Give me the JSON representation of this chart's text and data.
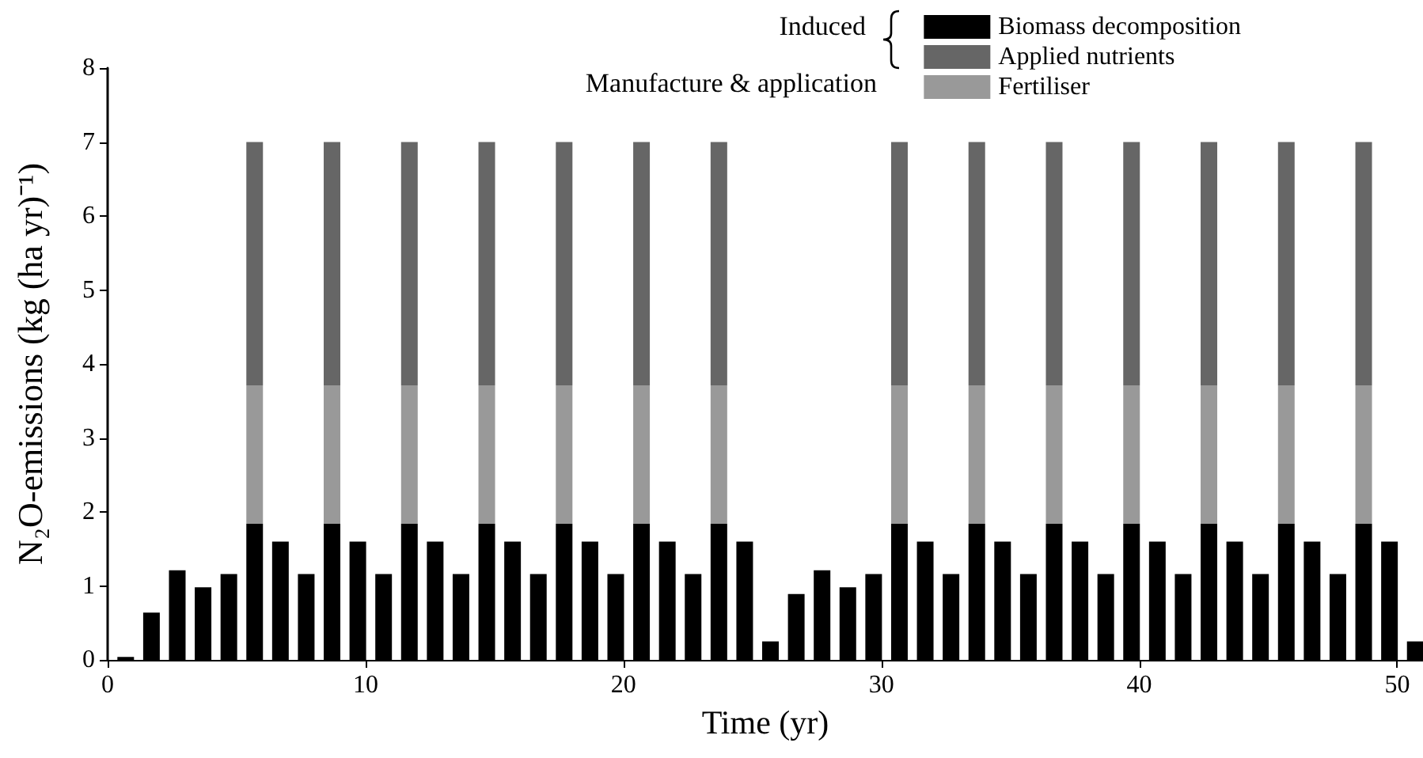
{
  "chart_data": {
    "type": "bar",
    "stacked": true,
    "xlabel": "Time (yr)",
    "ylabel": "N₂O-emissions (kg (ha yr)⁻¹)",
    "x": [
      0.7,
      1.7,
      2.7,
      3.7,
      4.7,
      5.7,
      6.7,
      7.7,
      8.7,
      9.7,
      10.7,
      11.7,
      12.7,
      13.7,
      14.7,
      15.7,
      16.7,
      17.7,
      18.7,
      19.7,
      20.7,
      21.7,
      22.7,
      23.7,
      24.7,
      25.7,
      26.7,
      27.7,
      28.7,
      29.7,
      30.7,
      31.7,
      32.7,
      33.7,
      34.7,
      35.7,
      36.7,
      37.7,
      38.7,
      39.7,
      40.7,
      41.7,
      42.7,
      43.7,
      44.7,
      45.7,
      46.7,
      47.7,
      48.7,
      49.7,
      50.7
    ],
    "series": [
      {
        "name": "Biomass decomposition",
        "color": "#000000",
        "values": [
          0.04,
          0.64,
          1.21,
          0.98,
          1.16,
          1.84,
          1.6,
          1.16,
          1.84,
          1.6,
          1.16,
          1.84,
          1.6,
          1.16,
          1.84,
          1.6,
          1.16,
          1.84,
          1.6,
          1.16,
          1.84,
          1.6,
          1.16,
          1.84,
          1.6,
          0.25,
          0.89,
          1.21,
          0.98,
          1.16,
          1.84,
          1.6,
          1.16,
          1.84,
          1.6,
          1.16,
          1.84,
          1.6,
          1.16,
          1.84,
          1.6,
          1.16,
          1.84,
          1.6,
          1.16,
          1.84,
          1.6,
          1.16,
          1.84,
          1.6,
          0.25
        ]
      },
      {
        "name": "Fertiliser",
        "color": "#999999",
        "values": [
          null,
          null,
          null,
          null,
          null,
          1.87,
          null,
          null,
          1.87,
          null,
          null,
          1.87,
          null,
          null,
          1.87,
          null,
          null,
          1.87,
          null,
          null,
          1.87,
          null,
          null,
          1.87,
          null,
          null,
          null,
          null,
          null,
          null,
          1.87,
          null,
          null,
          1.87,
          null,
          null,
          1.87,
          null,
          null,
          1.87,
          null,
          null,
          1.87,
          null,
          null,
          1.87,
          null,
          null,
          1.87,
          null,
          null
        ]
      },
      {
        "name": "Applied nutrients",
        "color": "#666666",
        "values": [
          null,
          null,
          null,
          null,
          null,
          3.29,
          null,
          null,
          3.29,
          null,
          null,
          3.29,
          null,
          null,
          3.29,
          null,
          null,
          3.29,
          null,
          null,
          3.29,
          null,
          null,
          3.29,
          null,
          null,
          null,
          null,
          null,
          null,
          3.29,
          null,
          null,
          3.29,
          null,
          null,
          3.29,
          null,
          null,
          3.29,
          null,
          null,
          3.29,
          null,
          null,
          3.29,
          null,
          null,
          3.29,
          null,
          null
        ]
      }
    ],
    "xlim": [
      0,
      51
    ],
    "xticks": [
      0,
      10,
      20,
      30,
      40,
      50
    ],
    "ylim": [
      0,
      8
    ],
    "yticks": [
      0,
      1,
      2,
      3,
      4,
      5,
      6,
      7,
      8
    ],
    "grid": false,
    "legend": "top right",
    "annotations": [
      "Induced",
      "Manufacture & application"
    ]
  }
}
